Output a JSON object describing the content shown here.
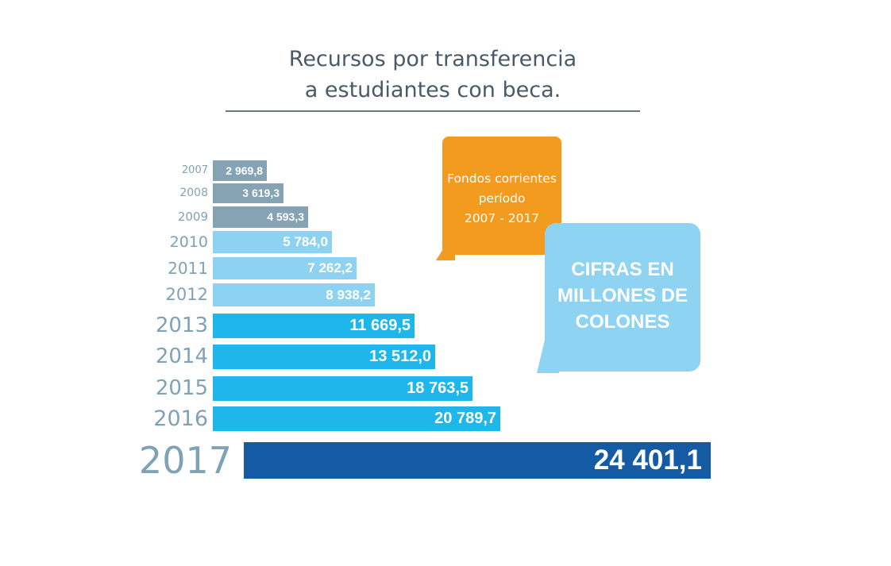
{
  "chart_data": {
    "type": "bar",
    "orientation": "horizontal",
    "title": "Recursos por transferencia a estudiantes con beca.",
    "title_lines": [
      "Recursos por transferencia",
      "a estudiantes con beca."
    ],
    "categories": [
      "2007",
      "2008",
      "2009",
      "2010",
      "2011",
      "2012",
      "2013",
      "2014",
      "2015",
      "2016",
      "2017"
    ],
    "values": [
      2969.8,
      3619.3,
      4593.3,
      5784.0,
      7262.2,
      8938.2,
      11669.5,
      13512.0,
      18763.5,
      20789.7,
      24401.1
    ],
    "value_labels": [
      "2 969,8",
      "3 619,3",
      "4 593,3",
      "5 784,0",
      "7 262,2",
      "8 938,2",
      "11 669,5",
      "13 512,0",
      "18 763,5",
      "20 789,7",
      "24 401,1"
    ],
    "colors": {
      "group_2007_2009": "#85a3b3",
      "group_2010_2012": "#8ed2f1",
      "group_2013_2016": "#1fb6ec",
      "highlight_2017": "#145ba4"
    },
    "grid": false,
    "legend": "none"
  },
  "callouts": {
    "period": [
      "Fondos corrientes",
      "período",
      "2007 - 2017"
    ],
    "units": [
      "CIFRAS EN",
      "MILLONES DE",
      "COLONES"
    ]
  }
}
